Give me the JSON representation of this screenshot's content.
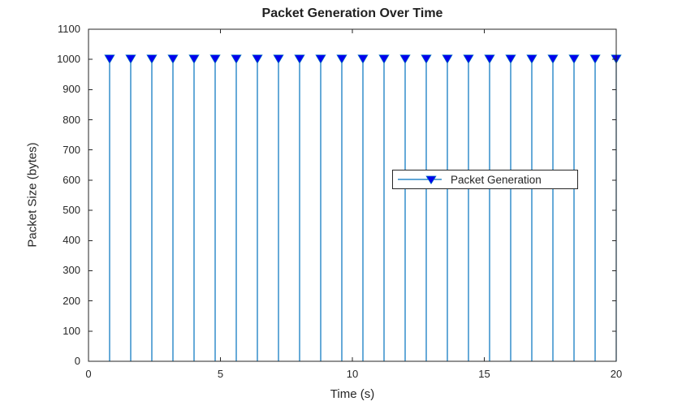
{
  "chart_data": {
    "type": "stem",
    "title": "Packet Generation Over Time",
    "xlabel": "Time (s)",
    "ylabel": "Packet Size (bytes)",
    "xlim": [
      0,
      20
    ],
    "ylim": [
      0,
      1100
    ],
    "xticks": [
      0,
      5,
      10,
      15,
      20
    ],
    "yticks": [
      0,
      100,
      200,
      300,
      400,
      500,
      600,
      700,
      800,
      900,
      1000,
      1100
    ],
    "grid": false,
    "legend": {
      "label": "Packet Generation",
      "position": "right-center"
    },
    "colors": {
      "stem_line": "#0072BD",
      "marker_fill": "#0000EE",
      "axis": "#262626",
      "background": "#ffffff"
    },
    "series": [
      {
        "name": "Packet Generation",
        "marker": "triangle-down-filled",
        "x": [
          0.8,
          1.6,
          2.4,
          3.2,
          4.0,
          4.8,
          5.6,
          6.4,
          7.2,
          8.0,
          8.8,
          9.6,
          10.4,
          11.2,
          12.0,
          12.8,
          13.6,
          14.4,
          15.2,
          16.0,
          16.8,
          17.6,
          18.4,
          19.2,
          20.0
        ],
        "y": [
          1000,
          1000,
          1000,
          1000,
          1000,
          1000,
          1000,
          1000,
          1000,
          1000,
          1000,
          1000,
          1000,
          1000,
          1000,
          1000,
          1000,
          1000,
          1000,
          1000,
          1000,
          1000,
          1000,
          1000,
          1000
        ]
      }
    ]
  }
}
